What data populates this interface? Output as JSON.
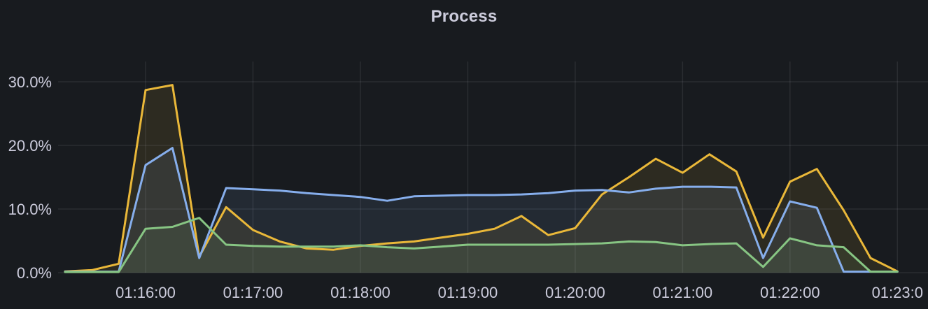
{
  "panel": {
    "title": "Process"
  },
  "chart_data": {
    "type": "area",
    "title": "Process",
    "unit": "percent",
    "legend": "none",
    "grid": true,
    "background_color": "#181b1f",
    "text_color": "#ccccdc",
    "grid_color": "rgba(204,204,220,0.10)",
    "ylim": [
      0,
      33
    ],
    "y_tick_labels": [
      "30.0%",
      "20.0%",
      "10.0%",
      "0.0%"
    ],
    "y_tick_values": [
      30,
      20,
      10,
      0
    ],
    "x_tick_labels": [
      "01:16:00",
      "01:17:00",
      "01:18:00",
      "01:19:00",
      "01:20:00",
      "01:21:00",
      "01:22:00",
      "01:23:0"
    ],
    "x_tick_indices": [
      3,
      7,
      11,
      15,
      19,
      23,
      27,
      31
    ],
    "x_times": [
      "01:15:15",
      "01:15:30",
      "01:15:45",
      "01:16:00",
      "01:16:15",
      "01:16:30",
      "01:16:45",
      "01:17:00",
      "01:17:15",
      "01:17:30",
      "01:17:45",
      "01:18:00",
      "01:18:15",
      "01:18:30",
      "01:18:45",
      "01:19:00",
      "01:19:15",
      "01:19:30",
      "01:19:45",
      "01:20:00",
      "01:20:15",
      "01:20:30",
      "01:20:45",
      "01:21:00",
      "01:21:15",
      "01:21:30",
      "01:21:45",
      "01:22:00",
      "01:22:15",
      "01:22:30",
      "01:22:45",
      "01:23:00"
    ],
    "x_step_seconds": 15,
    "series": [
      {
        "name": "yellow",
        "color": "#EAB839",
        "fill_opacity": 0.1,
        "values": [
          0.2,
          0.4,
          1.4,
          28.7,
          29.5,
          2.5,
          10.3,
          6.7,
          4.9,
          3.8,
          3.6,
          4.2,
          4.6,
          4.9,
          5.5,
          6.1,
          6.9,
          8.9,
          5.9,
          7.0,
          12.3,
          15.0,
          17.9,
          15.7,
          18.6,
          15.9,
          5.5,
          14.3,
          16.3,
          9.8,
          2.3,
          0.2
        ]
      },
      {
        "name": "blue",
        "color": "#86AEEC",
        "fill_opacity": 0.1,
        "values": [
          0.15,
          0.15,
          0.15,
          16.9,
          19.6,
          2.3,
          13.3,
          13.1,
          12.9,
          12.5,
          12.2,
          11.9,
          11.3,
          12.0,
          12.1,
          12.2,
          12.2,
          12.3,
          12.5,
          12.9,
          13.0,
          12.6,
          13.2,
          13.5,
          13.5,
          13.4,
          2.3,
          11.2,
          10.2,
          0.15,
          0.15,
          0.15
        ]
      },
      {
        "name": "green",
        "color": "#87C583",
        "fill_opacity": 0.1,
        "values": [
          0.1,
          0.1,
          0.1,
          6.9,
          7.2,
          8.6,
          4.4,
          4.2,
          4.1,
          4.1,
          4.1,
          4.3,
          4.0,
          3.8,
          4.1,
          4.4,
          4.4,
          4.4,
          4.4,
          4.5,
          4.6,
          4.9,
          4.8,
          4.3,
          4.5,
          4.6,
          0.9,
          5.4,
          4.3,
          4.0,
          0.15,
          0.15
        ]
      }
    ]
  }
}
